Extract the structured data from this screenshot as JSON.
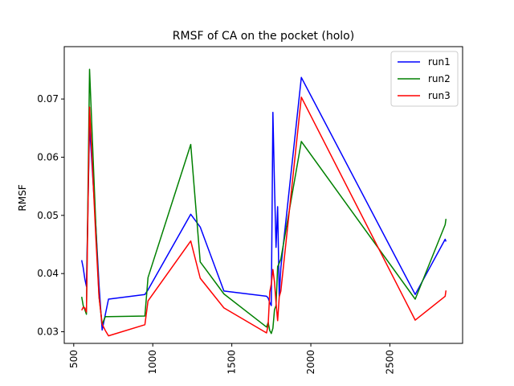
{
  "chart_data": {
    "type": "line",
    "title": "RMSF of CA on the pocket (holo)",
    "xlabel": "",
    "ylabel": "RMSF",
    "xlim": [
      440,
      2960
    ],
    "ylim": [
      0.028,
      0.079
    ],
    "xticks": [
      500,
      1000,
      1500,
      2000,
      2500
    ],
    "yticks": [
      0.03,
      0.04,
      0.05,
      0.06,
      0.07
    ],
    "grid": false,
    "legend_position": "top-right",
    "series": [
      {
        "name": "run1",
        "color": "#0000ff",
        "x": [
          550,
          560,
          570,
          580,
          600,
          640,
          660,
          680,
          700,
          720,
          950,
          970,
          1240,
          1300,
          1450,
          1720,
          1730,
          1740,
          1750,
          1760,
          1770,
          1780,
          1790,
          1800,
          1810,
          1940,
          2660,
          2850,
          2855
        ],
        "y": [
          0.0423,
          0.041,
          0.0391,
          0.0378,
          0.0655,
          0.048,
          0.038,
          0.0303,
          0.033,
          0.0356,
          0.0364,
          0.0372,
          0.0502,
          0.048,
          0.037,
          0.0361,
          0.0358,
          0.035,
          0.0345,
          0.0677,
          0.055,
          0.0445,
          0.0515,
          0.036,
          0.041,
          0.0737,
          0.0364,
          0.0459,
          0.0455
        ]
      },
      {
        "name": "run2",
        "color": "#008000",
        "x": [
          550,
          560,
          570,
          580,
          600,
          640,
          660,
          680,
          700,
          720,
          950,
          970,
          1240,
          1300,
          1450,
          1720,
          1730,
          1740,
          1750,
          1760,
          1770,
          1780,
          1790,
          1800,
          1810,
          1940,
          2660,
          2850,
          2855
        ],
        "y": [
          0.036,
          0.0345,
          0.0338,
          0.033,
          0.0751,
          0.048,
          0.036,
          0.0313,
          0.0326,
          0.0326,
          0.0327,
          0.0393,
          0.0622,
          0.042,
          0.0365,
          0.0308,
          0.0316,
          0.0302,
          0.0297,
          0.0306,
          0.0338,
          0.0345,
          0.0412,
          0.0418,
          0.0425,
          0.0627,
          0.0356,
          0.0484,
          0.0494
        ]
      },
      {
        "name": "run3",
        "color": "#ff0000",
        "x": [
          550,
          560,
          570,
          580,
          600,
          640,
          660,
          680,
          700,
          720,
          950,
          970,
          1240,
          1300,
          1450,
          1720,
          1730,
          1740,
          1750,
          1760,
          1770,
          1780,
          1790,
          1800,
          1810,
          1940,
          2660,
          2850,
          2855
        ],
        "y": [
          0.0337,
          0.0342,
          0.0341,
          0.0334,
          0.0686,
          0.046,
          0.036,
          0.0313,
          0.0302,
          0.0293,
          0.0312,
          0.0353,
          0.0456,
          0.0392,
          0.0341,
          0.0298,
          0.0312,
          0.0368,
          0.0382,
          0.0407,
          0.0385,
          0.035,
          0.0319,
          0.036,
          0.037,
          0.0703,
          0.032,
          0.0361,
          0.0371
        ]
      }
    ]
  }
}
